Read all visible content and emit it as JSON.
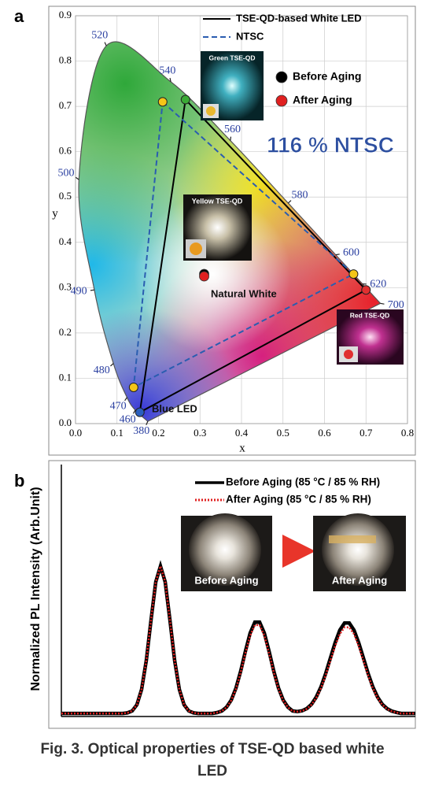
{
  "caption": "Fig. 3. Optical properties of TSE-QD based white LED",
  "chart_data": [
    {
      "type": "scatter",
      "panel": "a",
      "xlabel": "x",
      "ylabel": "y",
      "xlim": [
        0,
        0.8
      ],
      "ylim": [
        0,
        0.9
      ],
      "xticks": [
        {
          "value": 0,
          "label": "0.0"
        },
        0.1,
        0.2,
        0.3,
        0.4,
        0.5,
        0.6,
        0.7,
        0.8
      ],
      "yticks": [
        {
          "value": 0,
          "label": "0.0"
        },
        0.1,
        0.2,
        0.3,
        0.4,
        0.5,
        0.6,
        0.7,
        0.8,
        0.9
      ],
      "grid": true,
      "locus": {
        "color": "#7a4fa0",
        "wavelengths": [
          380,
          460,
          470,
          480,
          490,
          500,
          520,
          540,
          560,
          580,
          600,
          620,
          700
        ],
        "x": [
          0.1741,
          0.144,
          0.1241,
          0.0913,
          0.0454,
          0.0082,
          0.0743,
          0.2296,
          0.3731,
          0.5125,
          0.627,
          0.6915,
          0.7347
        ],
        "y": [
          0.005,
          0.0297,
          0.0578,
          0.1327,
          0.295,
          0.5384,
          0.8338,
          0.7543,
          0.6245,
          0.4866,
          0.3725,
          0.3083,
          0.2653
        ]
      },
      "series": [
        {
          "name": "TSE-QD-based White LED",
          "color": "#000000",
          "style": "solid",
          "marker_colors": [
            "#2a5fc0",
            "#3aaa35",
            "#e03030"
          ],
          "x": [
            0.155,
            0.265,
            0.7
          ],
          "y": [
            0.025,
            0.715,
            0.295
          ]
        },
        {
          "name": "NTSC",
          "color": "#2a5db0",
          "style": "dashed",
          "marker_colors": [
            "#f5c518",
            "#f5c518",
            "#f5c518"
          ],
          "x": [
            0.21,
            0.67,
            0.14
          ],
          "y": [
            0.71,
            0.33,
            0.08
          ]
        }
      ],
      "points": [
        {
          "name": "Before Aging",
          "color": "#000000",
          "x": 0.31,
          "y": 0.33
        },
        {
          "name": "After Aging",
          "color": "#e02020",
          "x": 0.31,
          "y": 0.325
        }
      ],
      "annotations": [
        "116 % NTSC",
        "Natural White",
        "Blue LED"
      ],
      "inset_labels": [
        "Green TSE-QD",
        "Yellow TSE-QD",
        "Red TSE-QD"
      ]
    },
    {
      "type": "line",
      "panel": "b",
      "ylabel": "Normalized PL Intensity (Arb.Unit)",
      "ylim": [
        0,
        1.7
      ],
      "series": [
        {
          "name": "Before Aging (85 °C / 85 % RH)",
          "color": "#000000",
          "style": "solid",
          "values": [
            0.01,
            0.01,
            0.01,
            0.01,
            0.01,
            0.01,
            0.01,
            0.01,
            0.01,
            0.01,
            0.01,
            0.01,
            0.01,
            0.01,
            0.014,
            0.027,
            0.069,
            0.173,
            0.37,
            0.645,
            0.903,
            1.01,
            0.903,
            0.645,
            0.37,
            0.173,
            0.069,
            0.027,
            0.014,
            0.01,
            0.01,
            0.01,
            0.01,
            0.016,
            0.027,
            0.053,
            0.101,
            0.183,
            0.298,
            0.433,
            0.556,
            0.63,
            0.63,
            0.556,
            0.433,
            0.298,
            0.183,
            0.101,
            0.053,
            0.027,
            0.023,
            0.028,
            0.043,
            0.072,
            0.121,
            0.19,
            0.281,
            0.386,
            0.49,
            0.576,
            0.624,
            0.624,
            0.576,
            0.49,
            0.386,
            0.281,
            0.19,
            0.121,
            0.072,
            0.043,
            0.026,
            0.017,
            0.01,
            0.01,
            0.01,
            0.01
          ]
        },
        {
          "name": "After Aging (85 °C / 85 % RH)",
          "color": "#e02020",
          "style": "dotted",
          "values": [
            0.01,
            0.01,
            0.01,
            0.01,
            0.01,
            0.01,
            0.01,
            0.01,
            0.01,
            0.01,
            0.01,
            0.01,
            0.01,
            0.01,
            0.014,
            0.027,
            0.069,
            0.173,
            0.37,
            0.645,
            0.903,
            1.01,
            0.903,
            0.645,
            0.37,
            0.173,
            0.069,
            0.027,
            0.014,
            0.01,
            0.01,
            0.01,
            0.01,
            0.016,
            0.026,
            0.051,
            0.098,
            0.177,
            0.289,
            0.42,
            0.539,
            0.61,
            0.61,
            0.539,
            0.42,
            0.289,
            0.177,
            0.098,
            0.051,
            0.026,
            0.022,
            0.027,
            0.041,
            0.069,
            0.115,
            0.181,
            0.268,
            0.368,
            0.467,
            0.549,
            0.595,
            0.595,
            0.549,
            0.467,
            0.368,
            0.268,
            0.181,
            0.115,
            0.069,
            0.041,
            0.025,
            0.016,
            0.01,
            0.01,
            0.01,
            0.01
          ]
        }
      ],
      "inset_labels": [
        "Before Aging",
        "After Aging"
      ]
    }
  ]
}
